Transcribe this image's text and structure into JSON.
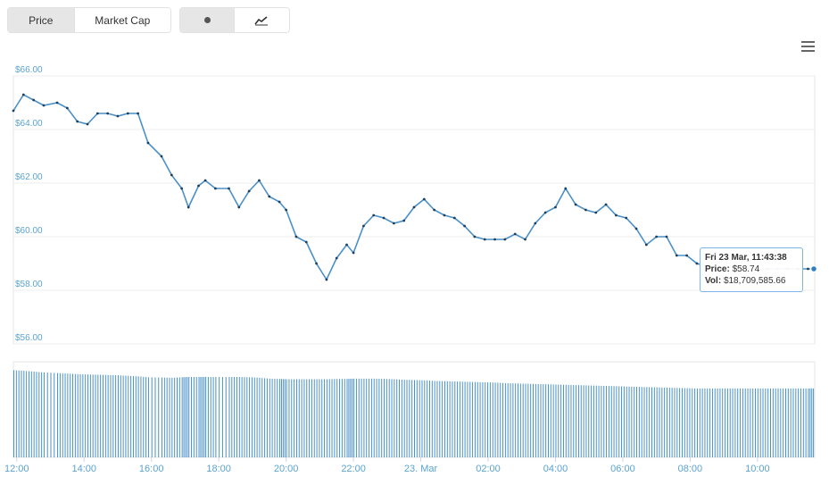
{
  "toolbar": {
    "price_label": "Price",
    "marketcap_label": "Market Cap",
    "dot_icon": "dot-icon",
    "line_icon": "line-chart-icon"
  },
  "colors": {
    "line": "#4a90c8",
    "axis_text": "#5ba3d0",
    "grid": "#e6e6e6",
    "volume": "#4a90c8"
  },
  "tooltip": {
    "date": "Fri 23 Mar, 11:43:38",
    "price_label": "Price:",
    "price_value": "$58.74",
    "vol_label": "Vol:",
    "vol_value": "$18,709,585.66"
  },
  "chart_data": {
    "type": "line",
    "title": "",
    "ylabel": "",
    "y_ticks": [
      "$66.00",
      "$64.00",
      "$62.00",
      "$60.00",
      "$58.00",
      "$56.00"
    ],
    "ylim": [
      56,
      66
    ],
    "x_ticks": [
      "12:00",
      "14:00",
      "16:00",
      "18:00",
      "20:00",
      "22:00",
      "23. Mar",
      "02:00",
      "04:00",
      "06:00",
      "08:00",
      "10:00"
    ],
    "x_hours": [
      12,
      14,
      16,
      18,
      20,
      22,
      24,
      26,
      28,
      30,
      32,
      34
    ],
    "xlim": [
      11.9,
      35.7
    ],
    "series": [
      {
        "x": [
          11.9,
          12.2,
          12.5,
          12.8,
          13.2,
          13.5,
          13.8,
          14.1,
          14.4,
          14.7,
          15.0,
          15.3,
          15.6,
          15.9,
          16.3,
          16.6,
          16.9,
          17.1,
          17.4,
          17.6,
          17.9,
          18.3,
          18.6,
          18.9,
          19.2,
          19.5,
          19.8,
          20.0,
          20.3,
          20.6,
          20.9,
          21.2,
          21.5,
          21.8,
          22.0,
          22.3,
          22.6,
          22.9,
          23.2,
          23.5,
          23.8,
          24.1,
          24.4,
          24.7,
          25.0,
          25.3,
          25.6,
          25.9,
          26.2,
          26.5,
          26.8,
          27.1,
          27.4,
          27.7,
          28.0,
          28.3,
          28.6,
          28.9,
          29.2,
          29.5,
          29.8,
          30.1,
          30.4,
          30.7,
          31.0,
          31.3,
          31.6,
          31.9,
          32.2,
          32.5,
          32.8,
          33.1,
          33.4,
          33.7,
          34.0,
          34.3,
          34.6,
          34.9,
          35.2,
          35.5,
          35.7
        ],
        "values": [
          64.7,
          65.3,
          65.1,
          64.9,
          65.0,
          64.8,
          64.3,
          64.2,
          64.6,
          64.6,
          64.5,
          64.6,
          64.6,
          63.5,
          63.0,
          62.3,
          61.8,
          61.1,
          61.9,
          62.1,
          61.8,
          61.8,
          61.1,
          61.7,
          62.1,
          61.5,
          61.3,
          61.0,
          60.0,
          59.8,
          59.0,
          58.4,
          59.2,
          59.7,
          59.4,
          60.4,
          60.8,
          60.7,
          60.5,
          60.6,
          61.1,
          61.4,
          61.0,
          60.8,
          60.7,
          60.4,
          60.0,
          59.9,
          59.9,
          59.9,
          60.1,
          59.9,
          60.5,
          60.9,
          61.1,
          61.8,
          61.2,
          61.0,
          60.9,
          61.2,
          60.8,
          60.7,
          60.3,
          59.7,
          60.0,
          60.0,
          59.3,
          59.3,
          59.0,
          58.9,
          58.8,
          58.8,
          58.9,
          58.8,
          58.74,
          58.8,
          58.8,
          58.8,
          58.8,
          58.8,
          58.8
        ],
        "volume": [
          3.1,
          3.08,
          3.05,
          3.02,
          3.0,
          2.98,
          2.96,
          2.95,
          2.94,
          2.93,
          2.92,
          2.9,
          2.88,
          2.85,
          2.84,
          2.83,
          2.85,
          2.86,
          2.86,
          2.86,
          2.86,
          2.86,
          2.86,
          2.85,
          2.83,
          2.8,
          2.79,
          2.78,
          2.78,
          2.78,
          2.78,
          2.78,
          2.79,
          2.79,
          2.8,
          2.8,
          2.8,
          2.79,
          2.78,
          2.76,
          2.75,
          2.74,
          2.72,
          2.71,
          2.7,
          2.69,
          2.68,
          2.67,
          2.66,
          2.64,
          2.63,
          2.62,
          2.61,
          2.6,
          2.59,
          2.58,
          2.57,
          2.56,
          2.55,
          2.54,
          2.53,
          2.52,
          2.51,
          2.5,
          2.49,
          2.48,
          2.47,
          2.46,
          2.45,
          2.45,
          2.45,
          2.45,
          2.45,
          2.45,
          2.45,
          2.45,
          2.45,
          2.45,
          2.45,
          2.45,
          2.45
        ]
      }
    ],
    "grid": true
  }
}
